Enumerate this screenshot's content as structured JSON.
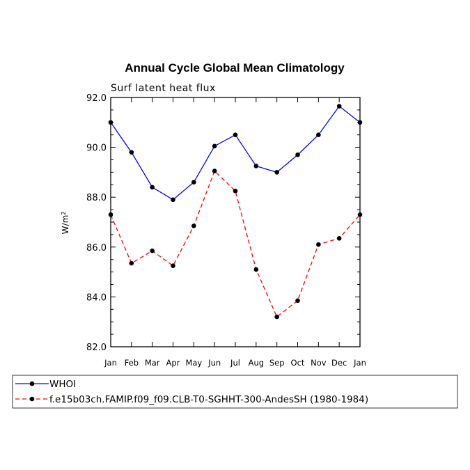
{
  "chart_data": {
    "type": "line",
    "title": "Annual Cycle Global Mean Climatology",
    "subtitle": "Surf latent heat flux",
    "xlabel": "",
    "ylabel": "W/m",
    "ylabel_sup": "2",
    "categories": [
      "Jan",
      "Feb",
      "Mar",
      "Apr",
      "May",
      "Jun",
      "Jul",
      "Aug",
      "Sep",
      "Oct",
      "Nov",
      "Dec",
      "Jan"
    ],
    "ylim": [
      82.0,
      92.0
    ],
    "yticks": [
      "82.0",
      "84.0",
      "86.0",
      "88.0",
      "90.0",
      "92.0"
    ],
    "series": [
      {
        "name": "WHOI",
        "color": "#0000ff",
        "dash": "solid",
        "values": [
          91.0,
          89.8,
          88.4,
          87.9,
          88.6,
          90.05,
          90.5,
          89.25,
          89.0,
          89.7,
          90.5,
          91.65,
          91.0
        ]
      },
      {
        "name": "f.e15b03ch.FAMIP.f09_f09.CLB-T0-SGHHT-300-AndesSH (1980-1984)",
        "color": "#ff0000",
        "dash": "dashed",
        "values": [
          87.3,
          85.35,
          85.85,
          85.25,
          86.85,
          89.05,
          88.25,
          85.1,
          83.2,
          83.85,
          86.1,
          86.35,
          87.3
        ]
      }
    ]
  }
}
